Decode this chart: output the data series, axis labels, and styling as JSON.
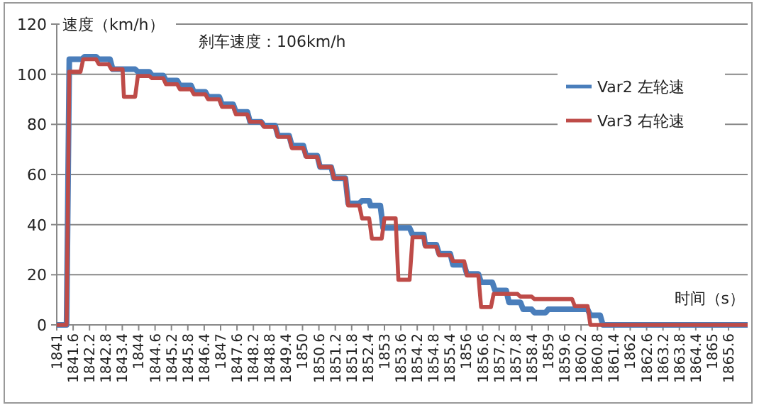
{
  "chart_data": {
    "type": "line",
    "ylabel": "速度（km/h）",
    "xlabel": "时间（s）",
    "annotations": [
      "刹车速度：106km/h"
    ],
    "xlim": [
      1841,
      1866.3
    ],
    "xticks": [
      1841,
      1841.6,
      1842.2,
      1842.8,
      1843.4,
      1844,
      1844.6,
      1845.2,
      1845.8,
      1846.4,
      1847,
      1847.6,
      1848.2,
      1848.8,
      1849.4,
      1850,
      1850.6,
      1851.2,
      1851.8,
      1852.4,
      1853,
      1853.6,
      1854.2,
      1854.8,
      1855.4,
      1856,
      1856.6,
      1857.2,
      1857.8,
      1858.4,
      1859,
      1859.6,
      1860.2,
      1860.8,
      1861.4,
      1862,
      1862.6,
      1863.2,
      1863.8,
      1864.4,
      1865,
      1865.6
    ],
    "ylim": [
      0,
      120
    ],
    "yticks": [
      0,
      20,
      40,
      60,
      80,
      100,
      120
    ],
    "grid": "y",
    "legend": "right",
    "series": [
      {
        "name": "Var2 左轮速",
        "color": "#4a7ebb",
        "x": [
          1841,
          1841.36,
          1841.46,
          1841.92,
          1842.02,
          1842.44,
          1842.54,
          1842.95,
          1843.05,
          1843.87,
          1843.97,
          1844.39,
          1844.49,
          1844.9,
          1845.0,
          1845.41,
          1845.51,
          1845.92,
          1846.02,
          1846.44,
          1846.54,
          1846.95,
          1847.05,
          1847.46,
          1847.56,
          1847.98,
          1848.08,
          1848.49,
          1848.59,
          1849.0,
          1849.1,
          1849.51,
          1849.61,
          1850.03,
          1850.13,
          1850.54,
          1850.64,
          1851.05,
          1851.15,
          1851.57,
          1851.67,
          1852.08,
          1852.18,
          1852.44,
          1852.49,
          1852.85,
          1852.95,
          1853.92,
          1854.03,
          1854.44,
          1854.49,
          1854.9,
          1855.0,
          1855.41,
          1855.51,
          1855.92,
          1856.02,
          1856.44,
          1856.54,
          1856.95,
          1857.05,
          1857.46,
          1857.56,
          1857.98,
          1858.08,
          1858.39,
          1858.49,
          1858.9,
          1859.0,
          1860.44,
          1860.54,
          1860.9,
          1861.0,
          1866.3
        ],
        "values": [
          0,
          0,
          106,
          106,
          107,
          107,
          106,
          106,
          102,
          102,
          101,
          101,
          99.5,
          99.5,
          97.5,
          97.5,
          95.5,
          95.5,
          93,
          93,
          91,
          91,
          88,
          88,
          85,
          85,
          81,
          81,
          79.5,
          79.5,
          75.5,
          75.5,
          71.5,
          71.5,
          67.5,
          67.5,
          63,
          63,
          58.5,
          58.5,
          48.5,
          48.5,
          49.5,
          49.5,
          47.6,
          47.6,
          38.7,
          38.7,
          36,
          36,
          32,
          32,
          28.4,
          28.4,
          24,
          24,
          20.3,
          20.3,
          17,
          17,
          13.7,
          13.7,
          9,
          9,
          6.2,
          6.2,
          4.9,
          4.9,
          6.2,
          6.2,
          3.8,
          3.8,
          0,
          0
        ]
      },
      {
        "name": "Var3 右轮速",
        "color": "#be4b48",
        "x": [
          1841,
          1841.36,
          1841.46,
          1841.87,
          1841.97,
          1842.44,
          1842.54,
          1842.9,
          1843.0,
          1843.41,
          1843.46,
          1843.87,
          1843.97,
          1844.39,
          1844.49,
          1844.9,
          1845.0,
          1845.41,
          1845.51,
          1845.92,
          1846.02,
          1846.44,
          1846.54,
          1846.95,
          1847.05,
          1847.46,
          1847.56,
          1847.98,
          1848.08,
          1848.49,
          1848.59,
          1849.0,
          1849.1,
          1849.51,
          1849.61,
          1850.03,
          1850.13,
          1850.54,
          1850.64,
          1851.05,
          1851.15,
          1851.57,
          1851.67,
          1852.08,
          1852.18,
          1852.44,
          1852.54,
          1852.9,
          1853.0,
          1853.41,
          1853.51,
          1853.92,
          1854.03,
          1854.44,
          1854.49,
          1854.9,
          1855.0,
          1855.41,
          1855.51,
          1855.92,
          1856.02,
          1856.44,
          1856.54,
          1856.9,
          1857.0,
          1857.87,
          1857.97,
          1858.39,
          1858.49,
          1859.87,
          1859.97,
          1860.44,
          1860.54,
          1866.3
        ],
        "values": [
          0,
          0,
          101,
          101,
          106,
          106,
          104,
          104,
          102,
          102,
          91,
          91,
          99.3,
          99.3,
          98.4,
          98.4,
          96,
          96,
          94,
          94,
          92,
          92,
          90,
          90,
          87,
          87,
          84,
          84,
          81,
          81,
          79,
          79,
          75,
          75,
          70.5,
          70.5,
          67,
          67,
          63,
          63,
          58.5,
          58.5,
          47.6,
          47.6,
          42.5,
          42.5,
          34.4,
          34.4,
          42.5,
          42.5,
          18,
          18,
          35,
          35,
          31.2,
          31.2,
          27.8,
          27.8,
          25.4,
          25.4,
          19.7,
          19.7,
          7.1,
          7.1,
          12.4,
          12.4,
          11.3,
          11.3,
          10.3,
          10.3,
          7.5,
          7.5,
          0,
          0
        ]
      }
    ]
  }
}
